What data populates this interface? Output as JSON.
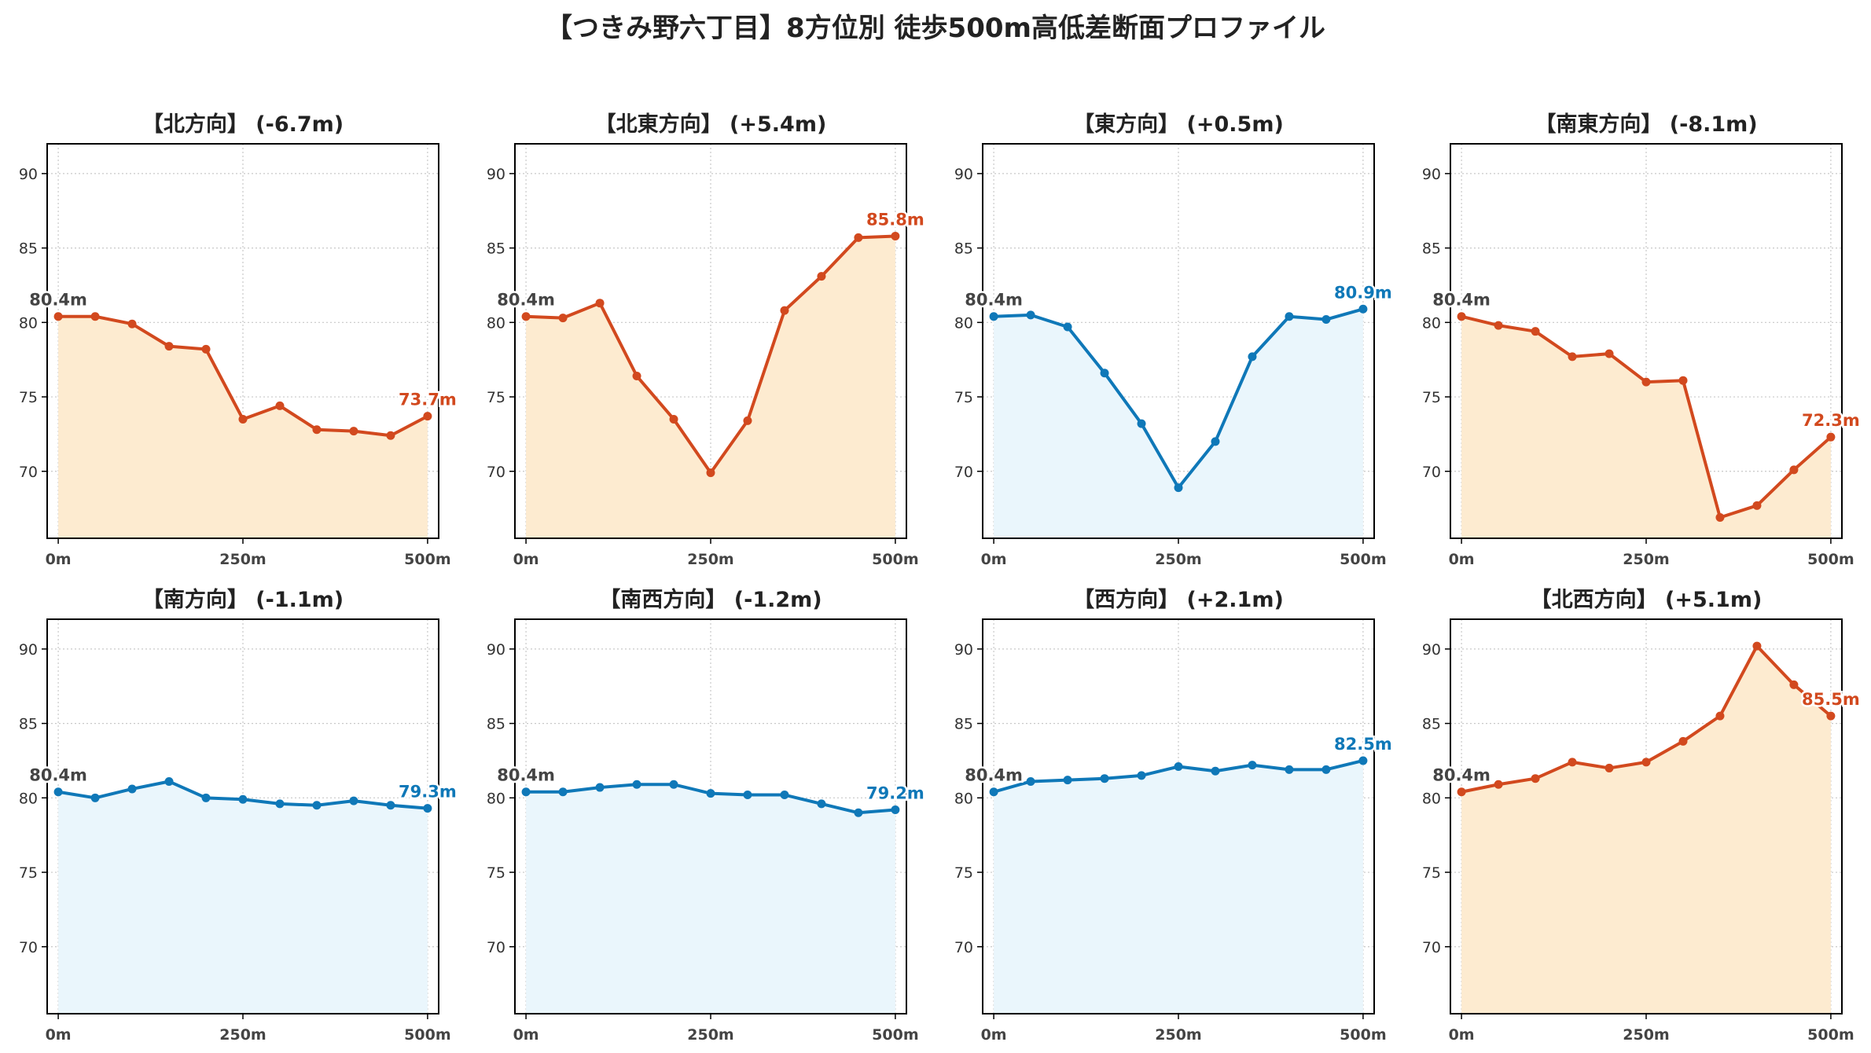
{
  "title": "【つきみ野六丁目】8方位別 徒歩500m高低差断面プロファイル",
  "colors": {
    "down_line": "#d2491e",
    "down_fill": "#fdebd0",
    "up_line": "#0f78b8",
    "up_fill": "#eaf6fc",
    "start_label": "#444444"
  },
  "chart_data": [
    {
      "type": "area",
      "title": "【北方向】 (-6.7m)",
      "style": "down",
      "x": [
        0,
        50,
        100,
        150,
        200,
        250,
        300,
        350,
        400,
        450,
        500
      ],
      "y": [
        80.4,
        80.4,
        79.9,
        78.4,
        78.2,
        73.5,
        74.4,
        72.8,
        72.7,
        72.4,
        73.7
      ],
      "start_label": "80.4m",
      "end_label": "73.7m",
      "xticks": [
        "0m",
        "250m",
        "500m"
      ],
      "yticks": [
        70,
        75,
        80,
        85,
        90
      ],
      "xlim": [
        -15,
        515
      ],
      "ylim": [
        65.5,
        92
      ],
      "grid": true
    },
    {
      "type": "area",
      "title": "【北東方向】 (+5.4m)",
      "style": "down",
      "x": [
        0,
        50,
        100,
        150,
        200,
        250,
        300,
        350,
        400,
        450,
        500
      ],
      "y": [
        80.4,
        80.3,
        81.3,
        76.4,
        73.5,
        69.9,
        73.4,
        80.8,
        83.1,
        85.7,
        85.8
      ],
      "start_label": "80.4m",
      "end_label": "85.8m",
      "xticks": [
        "0m",
        "250m",
        "500m"
      ],
      "yticks": [
        70,
        75,
        80,
        85,
        90
      ],
      "xlim": [
        -15,
        515
      ],
      "ylim": [
        65.5,
        92
      ],
      "grid": true
    },
    {
      "type": "area",
      "title": "【東方向】 (+0.5m)",
      "style": "up",
      "x": [
        0,
        50,
        100,
        150,
        200,
        250,
        300,
        350,
        400,
        450,
        500
      ],
      "y": [
        80.4,
        80.5,
        79.7,
        76.6,
        73.2,
        68.9,
        72.0,
        77.7,
        80.4,
        80.2,
        80.9
      ],
      "start_label": "80.4m",
      "end_label": "80.9m",
      "xticks": [
        "0m",
        "250m",
        "500m"
      ],
      "yticks": [
        70,
        75,
        80,
        85,
        90
      ],
      "xlim": [
        -15,
        515
      ],
      "ylim": [
        65.5,
        92
      ],
      "grid": true
    },
    {
      "type": "area",
      "title": "【南東方向】 (-8.1m)",
      "style": "down",
      "x": [
        0,
        50,
        100,
        150,
        200,
        250,
        300,
        350,
        400,
        450,
        500
      ],
      "y": [
        80.4,
        79.8,
        79.4,
        77.7,
        77.9,
        76.0,
        76.1,
        66.9,
        67.7,
        70.1,
        72.3
      ],
      "start_label": "80.4m",
      "end_label": "72.3m",
      "xticks": [
        "0m",
        "250m",
        "500m"
      ],
      "yticks": [
        70,
        75,
        80,
        85,
        90
      ],
      "xlim": [
        -15,
        515
      ],
      "ylim": [
        65.5,
        92
      ],
      "grid": true
    },
    {
      "type": "area",
      "title": "【南方向】 (-1.1m)",
      "style": "up",
      "x": [
        0,
        50,
        100,
        150,
        200,
        250,
        300,
        350,
        400,
        450,
        500
      ],
      "y": [
        80.4,
        80.0,
        80.6,
        81.1,
        80.0,
        79.9,
        79.6,
        79.5,
        79.8,
        79.5,
        79.3
      ],
      "start_label": "80.4m",
      "end_label": "79.3m",
      "xticks": [
        "0m",
        "250m",
        "500m"
      ],
      "yticks": [
        70,
        75,
        80,
        85,
        90
      ],
      "xlim": [
        -15,
        515
      ],
      "ylim": [
        65.5,
        92
      ],
      "grid": true
    },
    {
      "type": "area",
      "title": "【南西方向】 (-1.2m)",
      "style": "up",
      "x": [
        0,
        50,
        100,
        150,
        200,
        250,
        300,
        350,
        400,
        450,
        500
      ],
      "y": [
        80.4,
        80.4,
        80.7,
        80.9,
        80.9,
        80.3,
        80.2,
        80.2,
        79.6,
        79.0,
        79.2
      ],
      "start_label": "80.4m",
      "end_label": "79.2m",
      "xticks": [
        "0m",
        "250m",
        "500m"
      ],
      "yticks": [
        70,
        75,
        80,
        85,
        90
      ],
      "xlim": [
        -15,
        515
      ],
      "ylim": [
        65.5,
        92
      ],
      "grid": true
    },
    {
      "type": "area",
      "title": "【西方向】 (+2.1m)",
      "style": "up",
      "x": [
        0,
        50,
        100,
        150,
        200,
        250,
        300,
        350,
        400,
        450,
        500
      ],
      "y": [
        80.4,
        81.1,
        81.2,
        81.3,
        81.5,
        82.1,
        81.8,
        82.2,
        81.9,
        81.9,
        82.5
      ],
      "start_label": "80.4m",
      "end_label": "82.5m",
      "xticks": [
        "0m",
        "250m",
        "500m"
      ],
      "yticks": [
        70,
        75,
        80,
        85,
        90
      ],
      "xlim": [
        -15,
        515
      ],
      "ylim": [
        65.5,
        92
      ],
      "grid": true
    },
    {
      "type": "area",
      "title": "【北西方向】 (+5.1m)",
      "style": "down",
      "x": [
        0,
        50,
        100,
        150,
        200,
        250,
        300,
        350,
        400,
        450,
        500
      ],
      "y": [
        80.4,
        80.9,
        81.3,
        82.4,
        82.0,
        82.4,
        83.8,
        85.5,
        90.2,
        87.6,
        85.5
      ],
      "start_label": "80.4m",
      "end_label": "85.5m",
      "xticks": [
        "0m",
        "250m",
        "500m"
      ],
      "yticks": [
        70,
        75,
        80,
        85,
        90
      ],
      "xlim": [
        -15,
        515
      ],
      "ylim": [
        65.5,
        92
      ],
      "grid": true
    }
  ]
}
